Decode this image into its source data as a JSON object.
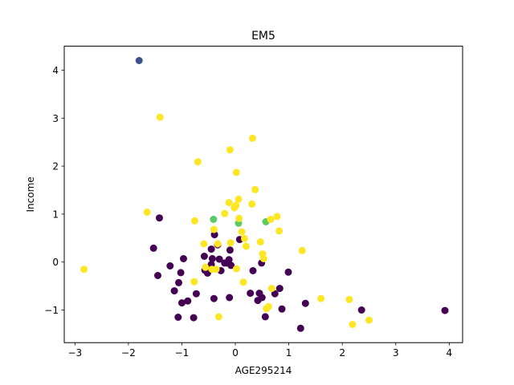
{
  "chart_data": {
    "type": "scatter",
    "title": "EM5",
    "xlabel": "AGE295214",
    "ylabel": "Income",
    "xlim": [
      -3.2,
      4.25
    ],
    "ylim": [
      -1.68,
      4.5
    ],
    "xticks": [
      -3,
      -2,
      -1,
      0,
      1,
      2,
      3,
      4
    ],
    "yticks": [
      -1,
      0,
      1,
      2,
      3,
      4
    ],
    "grid": false,
    "legend": "none",
    "colors": {
      "cluster_purple": "#440154",
      "cluster_blue": "#3b528b",
      "cluster_green": "#5ec962",
      "cluster_yellow": "#fde725"
    },
    "series": [
      {
        "color": "#440154",
        "points": [
          [
            -1.42,
            0.92
          ],
          [
            -1.53,
            0.29
          ],
          [
            -1.45,
            -0.28
          ],
          [
            -1.22,
            -0.08
          ],
          [
            -1.14,
            -0.6
          ],
          [
            -1.06,
            -0.43
          ],
          [
            -1.02,
            -0.22
          ],
          [
            -0.97,
            0.07
          ],
          [
            -1.0,
            -0.85
          ],
          [
            -1.07,
            -1.15
          ],
          [
            -0.89,
            -0.81
          ],
          [
            -0.78,
            -1.16
          ],
          [
            -0.73,
            -0.66
          ],
          [
            -0.57,
            -0.17
          ],
          [
            -0.52,
            -0.23
          ],
          [
            -0.45,
            -0.05
          ],
          [
            -0.43,
            0.07
          ],
          [
            -0.4,
            -0.76
          ],
          [
            -0.39,
            0.57
          ],
          [
            -0.33,
            0.36
          ],
          [
            -0.3,
            0.06
          ],
          [
            -0.27,
            -0.18
          ],
          [
            -0.2,
            -0.02
          ],
          [
            -0.16,
            -0.02
          ],
          [
            -0.12,
            0.05
          ],
          [
            -0.1,
            0.25
          ],
          [
            -0.08,
            -0.07
          ],
          [
            -0.11,
            -0.74
          ],
          [
            0.08,
            0.47
          ],
          [
            0.33,
            -0.18
          ],
          [
            0.28,
            -0.65
          ],
          [
            0.42,
            -0.8
          ],
          [
            0.45,
            -0.65
          ],
          [
            0.5,
            -0.74
          ],
          [
            0.49,
            -0.02
          ],
          [
            0.56,
            -1.14
          ],
          [
            0.74,
            -0.66
          ],
          [
            0.83,
            -0.55
          ],
          [
            0.87,
            -0.98
          ],
          [
            0.99,
            -0.21
          ],
          [
            1.22,
            -1.38
          ],
          [
            1.31,
            -0.86
          ],
          [
            2.36,
            -1.0
          ],
          [
            3.92,
            -1.01
          ],
          [
            -0.58,
            0.12
          ],
          [
            -0.45,
            0.27
          ]
        ]
      },
      {
        "color": "#3b528b",
        "points": [
          [
            -1.8,
            4.2
          ]
        ]
      },
      {
        "color": "#5ec962",
        "points": [
          [
            -0.41,
            0.89
          ],
          [
            0.06,
            0.81
          ],
          [
            0.57,
            0.84
          ]
        ]
      },
      {
        "color": "#fde725",
        "points": [
          [
            -2.83,
            -0.15
          ],
          [
            -1.41,
            3.02
          ],
          [
            -1.65,
            1.04
          ],
          [
            -0.7,
            2.09
          ],
          [
            -0.76,
            0.86
          ],
          [
            -0.59,
            0.38
          ],
          [
            -0.56,
            -0.11
          ],
          [
            -0.44,
            -0.15
          ],
          [
            -0.36,
            -0.15
          ],
          [
            -0.4,
            0.68
          ],
          [
            -0.33,
            0.38
          ],
          [
            -0.31,
            -1.14
          ],
          [
            -0.2,
            1.01
          ],
          [
            -0.12,
            1.24
          ],
          [
            -0.1,
            2.34
          ],
          [
            -0.09,
            0.4
          ],
          [
            -0.02,
            1.13
          ],
          [
            0.01,
            1.18
          ],
          [
            0.02,
            1.87
          ],
          [
            0.06,
            1.31
          ],
          [
            0.07,
            0.91
          ],
          [
            0.12,
            0.63
          ],
          [
            0.17,
            0.49
          ],
          [
            0.2,
            0.33
          ],
          [
            0.31,
            1.21
          ],
          [
            0.32,
            2.58
          ],
          [
            0.37,
            1.51
          ],
          [
            0.47,
            0.42
          ],
          [
            0.51,
            0.17
          ],
          [
            0.53,
            0.07
          ],
          [
            0.66,
            0.89
          ],
          [
            0.78,
            0.95
          ],
          [
            0.82,
            0.65
          ],
          [
            0.62,
            -0.93
          ],
          [
            0.68,
            -0.55
          ],
          [
            1.25,
            0.24
          ],
          [
            1.6,
            -0.76
          ],
          [
            2.13,
            -0.78
          ],
          [
            2.19,
            -1.3
          ],
          [
            2.5,
            -1.21
          ],
          [
            0.02,
            -0.14
          ],
          [
            0.15,
            -0.42
          ],
          [
            -0.77,
            -0.41
          ],
          [
            0.58,
            -0.97
          ]
        ]
      }
    ]
  }
}
